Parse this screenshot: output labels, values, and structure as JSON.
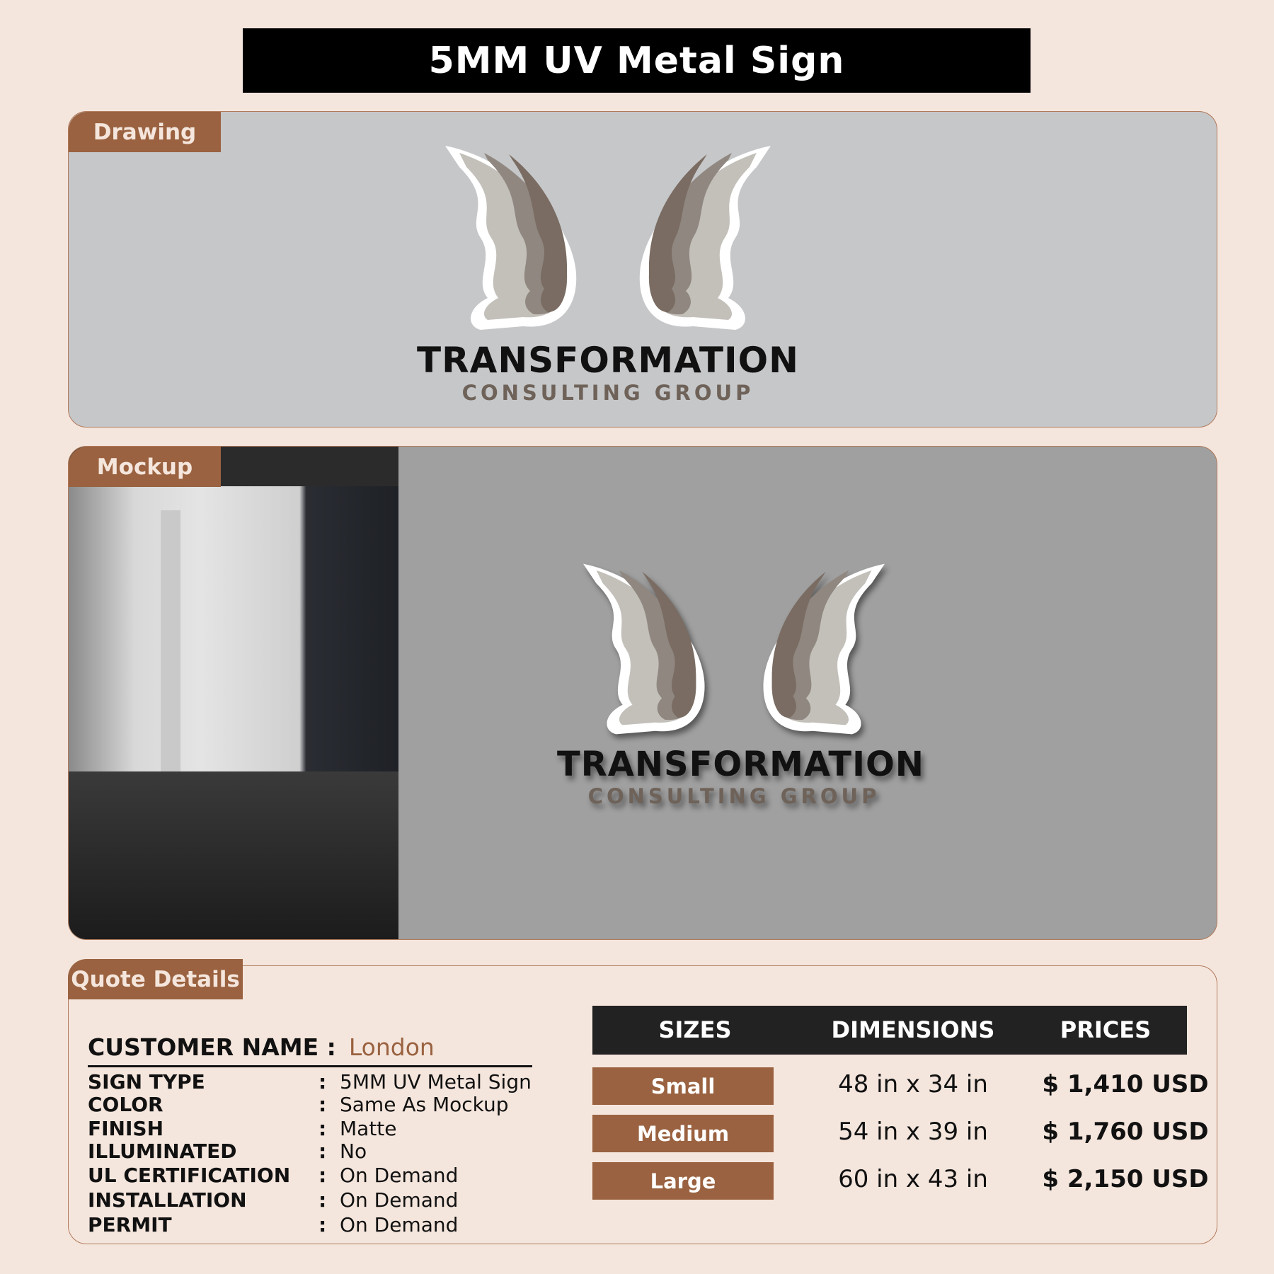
{
  "title": "5MM UV Metal Sign",
  "drawing": {
    "tab": "Drawing",
    "logo_line1": "TRANSFORMATION",
    "logo_line2": "CONSULTING GROUP"
  },
  "mockup": {
    "tab": "Mockup",
    "logo_line1": "TRANSFORMATION",
    "logo_line2": "CONSULTING GROUP"
  },
  "quote": {
    "tab": "Quote Details",
    "customer_label": "CUSTOMER NAME :",
    "customer_value": "London",
    "details": [
      {
        "label": "SIGN TYPE",
        "value": "5MM UV Metal Sign"
      },
      {
        "label": "COLOR",
        "value": "Same As Mockup"
      },
      {
        "label": "FINISH",
        "value": "Matte"
      },
      {
        "label": "ILLUMINATED",
        "value": "No"
      },
      {
        "label": "UL CERTIFICATION",
        "value": "On Demand"
      },
      {
        "label": "INSTALLATION",
        "value": "On Demand"
      },
      {
        "label": "PERMIT",
        "value": "On Demand"
      }
    ],
    "separator": ":",
    "table": {
      "headers": [
        "SIZES",
        "DIMENSIONS",
        "PRICES"
      ],
      "rows": [
        {
          "size": "Small",
          "dimensions": "48 in x 34 in",
          "price": "$ 1,410 USD"
        },
        {
          "size": "Medium",
          "dimensions": "54 in x 39 in",
          "price": "$ 1,760 USD"
        },
        {
          "size": "Large",
          "dimensions": "60 in x 43 in",
          "price": "$ 2,150 USD"
        }
      ]
    }
  },
  "colors": {
    "accent": "#9a6240",
    "background": "#f5e6dd",
    "header": "#222222"
  }
}
